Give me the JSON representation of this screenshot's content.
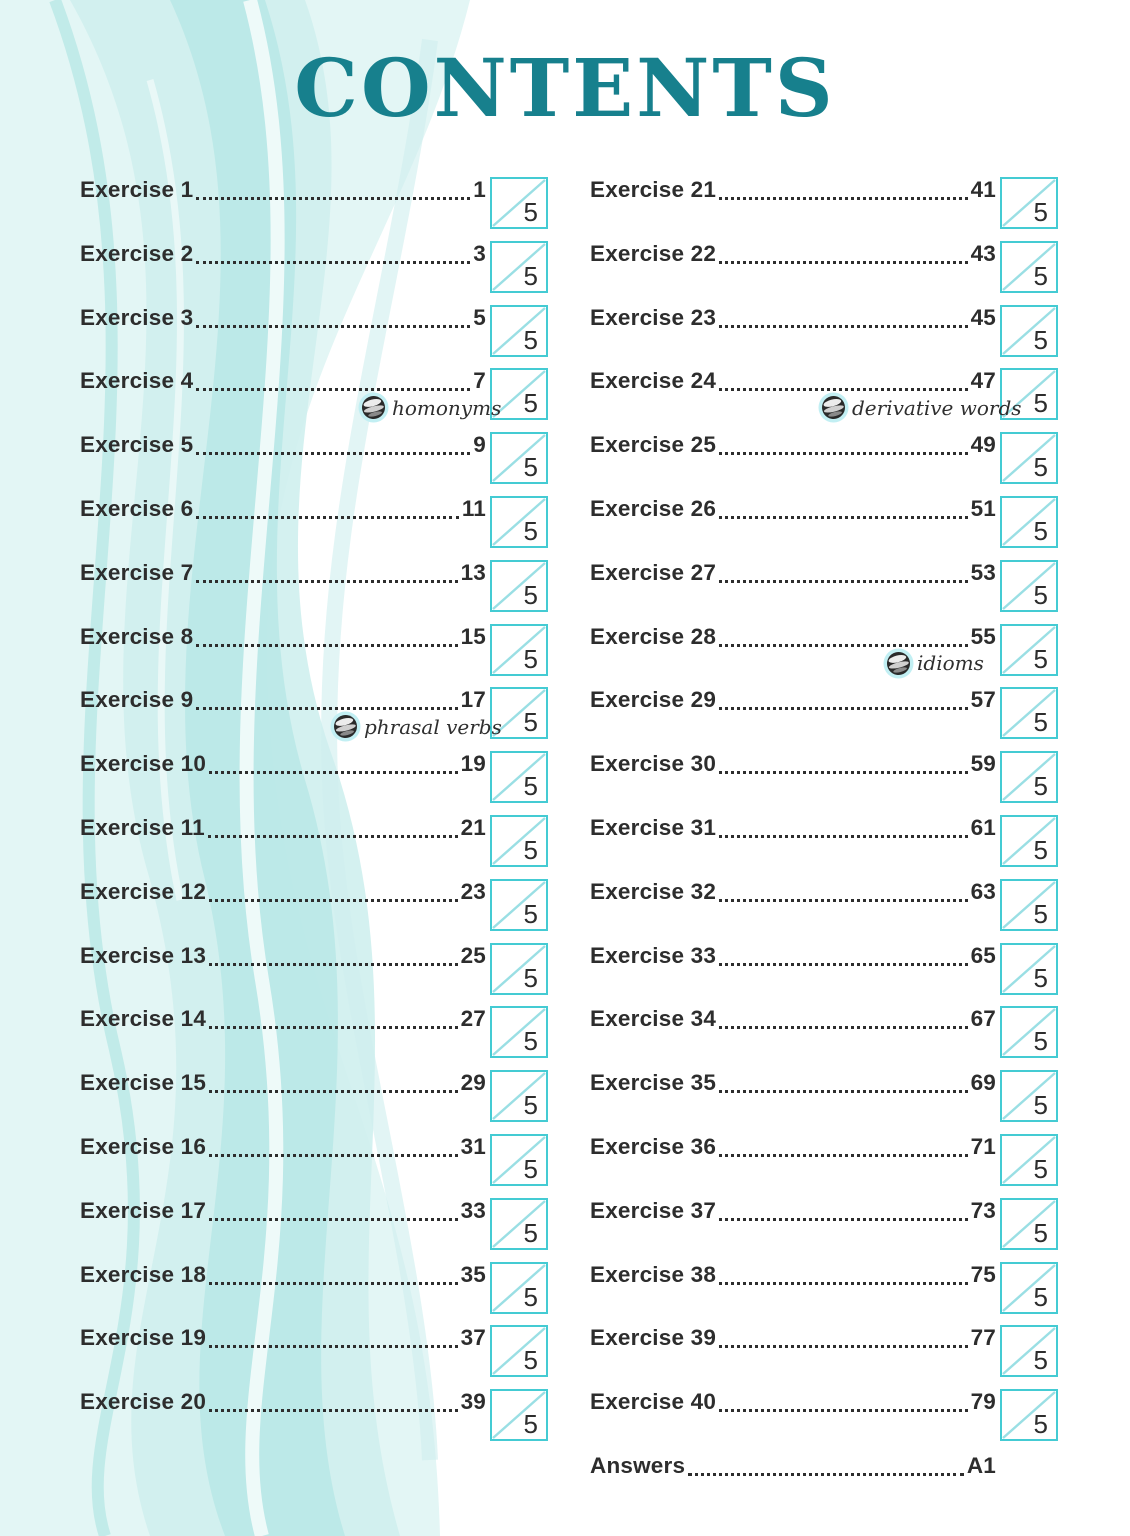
{
  "page_title": "CONTENTS",
  "colors": {
    "title": "#17808D",
    "text": "#2D2D2D",
    "box_border": "#44CBD3",
    "box_diagonal": "#9ADFE4",
    "badge_ring": "#C2EFF3",
    "badge_sphere": "#2A2A2A",
    "wave_1": "#E3F6F5",
    "wave_2": "#CFEFEE",
    "wave_3": "#B9E8E6",
    "wave_accent": "#A5E1DE"
  },
  "toc": {
    "left": [
      {
        "label": "Exercise 1",
        "page": "1",
        "score": "5"
      },
      {
        "label": "Exercise 2",
        "page": "3",
        "score": "5"
      },
      {
        "label": "Exercise 3",
        "page": "5",
        "score": "5"
      },
      {
        "label": "Exercise 4",
        "page": "7",
        "score": "5",
        "badge": "homonyms"
      },
      {
        "label": "Exercise 5",
        "page": "9",
        "score": "5"
      },
      {
        "label": "Exercise 6",
        "page": "11",
        "score": "5"
      },
      {
        "label": "Exercise 7",
        "page": "13",
        "score": "5"
      },
      {
        "label": "Exercise 8",
        "page": "15",
        "score": "5"
      },
      {
        "label": "Exercise 9",
        "page": "17",
        "score": "5",
        "badge": "phrasal verbs"
      },
      {
        "label": "Exercise 10",
        "page": "19",
        "score": "5"
      },
      {
        "label": "Exercise 11",
        "page": "21",
        "score": "5"
      },
      {
        "label": "Exercise 12",
        "page": "23",
        "score": "5"
      },
      {
        "label": "Exercise 13",
        "page": "25",
        "score": "5"
      },
      {
        "label": "Exercise 14",
        "page": "27",
        "score": "5"
      },
      {
        "label": "Exercise 15",
        "page": "29",
        "score": "5"
      },
      {
        "label": "Exercise 16",
        "page": "31",
        "score": "5"
      },
      {
        "label": "Exercise 17",
        "page": "33",
        "score": "5"
      },
      {
        "label": "Exercise 18",
        "page": "35",
        "score": "5"
      },
      {
        "label": "Exercise 19",
        "page": "37",
        "score": "5"
      },
      {
        "label": "Exercise 20",
        "page": "39",
        "score": "5"
      }
    ],
    "right": [
      {
        "label": "Exercise 21",
        "page": "41",
        "score": "5"
      },
      {
        "label": "Exercise 22",
        "page": "43",
        "score": "5"
      },
      {
        "label": "Exercise 23",
        "page": "45",
        "score": "5"
      },
      {
        "label": "Exercise 24",
        "page": "47",
        "score": "5",
        "badge": "derivative words"
      },
      {
        "label": "Exercise 25",
        "page": "49",
        "score": "5"
      },
      {
        "label": "Exercise 26",
        "page": "51",
        "score": "5"
      },
      {
        "label": "Exercise 27",
        "page": "53",
        "score": "5"
      },
      {
        "label": "Exercise 28",
        "page": "55",
        "score": "5",
        "badge": "idioms"
      },
      {
        "label": "Exercise 29",
        "page": "57",
        "score": "5"
      },
      {
        "label": "Exercise 30",
        "page": "59",
        "score": "5"
      },
      {
        "label": "Exercise 31",
        "page": "61",
        "score": "5"
      },
      {
        "label": "Exercise 32",
        "page": "63",
        "score": "5"
      },
      {
        "label": "Exercise 33",
        "page": "65",
        "score": "5"
      },
      {
        "label": "Exercise 34",
        "page": "67",
        "score": "5"
      },
      {
        "label": "Exercise 35",
        "page": "69",
        "score": "5"
      },
      {
        "label": "Exercise 36",
        "page": "71",
        "score": "5"
      },
      {
        "label": "Exercise 37",
        "page": "73",
        "score": "5"
      },
      {
        "label": "Exercise 38",
        "page": "75",
        "score": "5"
      },
      {
        "label": "Exercise 39",
        "page": "77",
        "score": "5"
      },
      {
        "label": "Exercise 40",
        "page": "79",
        "score": "5"
      },
      {
        "label": "Answers",
        "page": "A1"
      }
    ]
  }
}
